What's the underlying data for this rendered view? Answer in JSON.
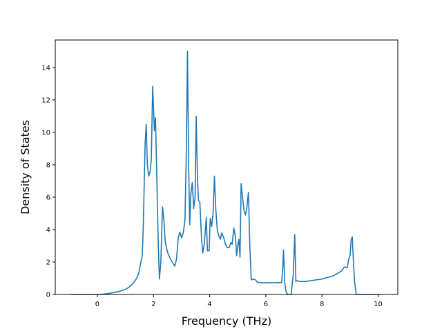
{
  "chart_data": {
    "type": "line",
    "title": "",
    "xlabel": "Frequency (THz)",
    "ylabel": "Density of States",
    "xlim": [
      -1.5,
      10.7
    ],
    "ylim": [
      0,
      15.7
    ],
    "xticks": [
      0,
      2,
      4,
      6,
      8,
      10
    ],
    "yticks": [
      0,
      2,
      4,
      6,
      8,
      10,
      12,
      14
    ],
    "grid": false,
    "legend": "none",
    "series": [
      {
        "color": "#1f77b4",
        "points": [
          [
            -0.95,
            0
          ],
          [
            -0.5,
            0
          ],
          [
            0.0,
            0
          ],
          [
            0.2,
            0.02
          ],
          [
            0.4,
            0.06
          ],
          [
            0.6,
            0.12
          ],
          [
            0.8,
            0.2
          ],
          [
            1.0,
            0.32
          ],
          [
            1.1,
            0.42
          ],
          [
            1.2,
            0.55
          ],
          [
            1.3,
            0.75
          ],
          [
            1.4,
            1.0
          ],
          [
            1.48,
            1.35
          ],
          [
            1.55,
            2.0
          ],
          [
            1.6,
            2.4
          ],
          [
            1.64,
            4.5
          ],
          [
            1.67,
            7.0
          ],
          [
            1.7,
            9.3
          ],
          [
            1.74,
            10.5
          ],
          [
            1.78,
            8.0
          ],
          [
            1.83,
            7.3
          ],
          [
            1.88,
            7.6
          ],
          [
            1.92,
            8.3
          ],
          [
            1.97,
            12.85
          ],
          [
            2.0,
            11.5
          ],
          [
            2.03,
            10.1
          ],
          [
            2.07,
            10.9
          ],
          [
            2.12,
            7.0
          ],
          [
            2.17,
            3.0
          ],
          [
            2.21,
            0.95
          ],
          [
            2.26,
            2.0
          ],
          [
            2.32,
            5.4
          ],
          [
            2.37,
            4.6
          ],
          [
            2.42,
            3.2
          ],
          [
            2.5,
            2.6
          ],
          [
            2.6,
            2.2
          ],
          [
            2.7,
            1.9
          ],
          [
            2.76,
            1.75
          ],
          [
            2.82,
            2.2
          ],
          [
            2.88,
            3.5
          ],
          [
            2.94,
            3.85
          ],
          [
            3.0,
            3.5
          ],
          [
            3.06,
            3.8
          ],
          [
            3.12,
            4.6
          ],
          [
            3.17,
            9.0
          ],
          [
            3.21,
            15.0
          ],
          [
            3.25,
            8.0
          ],
          [
            3.29,
            4.3
          ],
          [
            3.33,
            6.2
          ],
          [
            3.38,
            6.9
          ],
          [
            3.43,
            5.3
          ],
          [
            3.48,
            6.0
          ],
          [
            3.52,
            11.0
          ],
          [
            3.56,
            7.5
          ],
          [
            3.6,
            5.8
          ],
          [
            3.65,
            5.7
          ],
          [
            3.7,
            3.8
          ],
          [
            3.75,
            2.55
          ],
          [
            3.8,
            3.0
          ],
          [
            3.84,
            3.8
          ],
          [
            3.88,
            4.75
          ],
          [
            3.92,
            2.7
          ],
          [
            3.98,
            2.7
          ],
          [
            4.02,
            4.7
          ],
          [
            4.07,
            4.2
          ],
          [
            4.12,
            5.0
          ],
          [
            4.17,
            7.3
          ],
          [
            4.22,
            5.2
          ],
          [
            4.27,
            4.0
          ],
          [
            4.33,
            3.6
          ],
          [
            4.38,
            3.4
          ],
          [
            4.43,
            3.8
          ],
          [
            4.5,
            3.5
          ],
          [
            4.56,
            3.1
          ],
          [
            4.62,
            2.9
          ],
          [
            4.7,
            2.9
          ],
          [
            4.75,
            3.2
          ],
          [
            4.8,
            3.1
          ],
          [
            4.86,
            4.1
          ],
          [
            4.92,
            3.5
          ],
          [
            4.96,
            2.4
          ],
          [
            5.0,
            3.0
          ],
          [
            5.04,
            3.4
          ],
          [
            5.08,
            2.3
          ],
          [
            5.12,
            6.85
          ],
          [
            5.17,
            6.0
          ],
          [
            5.22,
            5.2
          ],
          [
            5.27,
            4.9
          ],
          [
            5.32,
            5.3
          ],
          [
            5.38,
            6.3
          ],
          [
            5.43,
            3.0
          ],
          [
            5.48,
            0.9
          ],
          [
            5.55,
            0.95
          ],
          [
            5.62,
            0.92
          ],
          [
            5.7,
            0.75
          ],
          [
            5.9,
            0.72
          ],
          [
            6.1,
            0.72
          ],
          [
            6.3,
            0.72
          ],
          [
            6.45,
            0.73
          ],
          [
            6.56,
            0.72
          ],
          [
            6.6,
            1.5
          ],
          [
            6.63,
            2.75
          ],
          [
            6.67,
            0.8
          ],
          [
            6.72,
            0.15
          ],
          [
            6.78,
            0.0
          ],
          [
            6.9,
            0.0
          ],
          [
            6.98,
            1.3
          ],
          [
            7.03,
            3.7
          ],
          [
            7.07,
            0.8
          ],
          [
            7.12,
            0.85
          ],
          [
            7.2,
            0.8
          ],
          [
            7.4,
            0.8
          ],
          [
            7.6,
            0.85
          ],
          [
            7.8,
            0.9
          ],
          [
            8.0,
            0.95
          ],
          [
            8.2,
            1.05
          ],
          [
            8.4,
            1.15
          ],
          [
            8.55,
            1.3
          ],
          [
            8.7,
            1.45
          ],
          [
            8.8,
            1.7
          ],
          [
            8.9,
            1.65
          ],
          [
            8.95,
            2.2
          ],
          [
            9.0,
            2.4
          ],
          [
            9.04,
            3.4
          ],
          [
            9.08,
            3.55
          ],
          [
            9.12,
            2.0
          ],
          [
            9.16,
            0.8
          ],
          [
            9.22,
            0.0
          ],
          [
            9.5,
            0
          ],
          [
            10.0,
            0
          ],
          [
            10.1,
            0
          ]
        ]
      }
    ]
  }
}
